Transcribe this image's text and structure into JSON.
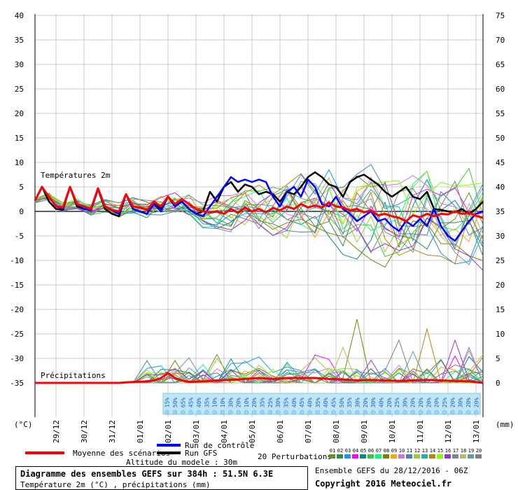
{
  "chart_data": {
    "type": "line",
    "temp_axis": {
      "label": "(°C)",
      "ticks": [
        40,
        35,
        30,
        25,
        20,
        15,
        10,
        5,
        0,
        -5,
        -10,
        -15,
        -20,
        -25,
        -30,
        -35
      ],
      "range": [
        -35,
        40
      ]
    },
    "precip_axis": {
      "label": "(mm)",
      "ticks": [
        75,
        70,
        65,
        60,
        55,
        50,
        45,
        40,
        35,
        30,
        25,
        20,
        15,
        10,
        5,
        0
      ],
      "range": [
        0,
        75
      ]
    },
    "x_dates": [
      "29/12",
      "30/12",
      "31/12",
      "01/01",
      "02/01",
      "03/01",
      "04/01",
      "05/01",
      "06/01",
      "07/01",
      "08/01",
      "09/01",
      "10/01",
      "11/01",
      "12/01",
      "13/01"
    ],
    "x_hours_range": [
      0,
      384
    ],
    "temp_section_label": "Températures 2m",
    "precip_section_label": "Précipitations",
    "series": [
      {
        "name": "Moyenne des scénarios",
        "color": "#ff0000"
      },
      {
        "name": "Run de contrôle",
        "color": "#0000ff"
      },
      {
        "name": "Run GFS",
        "color": "#000000"
      }
    ],
    "mean_temp": [
      [
        0,
        2.2
      ],
      [
        6,
        5
      ],
      [
        12,
        3
      ],
      [
        18,
        1
      ],
      [
        24,
        0.8
      ],
      [
        30,
        5
      ],
      [
        36,
        1.5
      ],
      [
        42,
        1
      ],
      [
        48,
        0.5
      ],
      [
        54,
        4.7
      ],
      [
        60,
        1
      ],
      [
        66,
        0.3
      ],
      [
        72,
        0
      ],
      [
        78,
        3.5
      ],
      [
        84,
        1
      ],
      [
        90,
        0.8
      ],
      [
        96,
        0.3
      ],
      [
        102,
        2
      ],
      [
        108,
        1
      ],
      [
        114,
        3
      ],
      [
        120,
        1.5
      ],
      [
        126,
        2.5
      ],
      [
        132,
        1.5
      ],
      [
        138,
        0.5
      ],
      [
        144,
        0
      ],
      [
        150,
        -0.2
      ],
      [
        156,
        0
      ],
      [
        162,
        -0.5
      ],
      [
        168,
        0.5
      ],
      [
        174,
        -0.3
      ],
      [
        180,
        0.8
      ],
      [
        186,
        0
      ],
      [
        192,
        0.5
      ],
      [
        198,
        -0.2
      ],
      [
        204,
        0.7
      ],
      [
        210,
        0.2
      ],
      [
        216,
        1
      ],
      [
        222,
        0.5
      ],
      [
        228,
        1.5
      ],
      [
        234,
        0.8
      ],
      [
        240,
        1.2
      ],
      [
        246,
        0.8
      ],
      [
        252,
        1.8
      ],
      [
        258,
        1
      ],
      [
        264,
        0.8
      ],
      [
        270,
        0.2
      ],
      [
        276,
        0.5
      ],
      [
        282,
        -0.2
      ],
      [
        288,
        0.2
      ],
      [
        294,
        -0.8
      ],
      [
        300,
        -0.5
      ],
      [
        306,
        -1
      ],
      [
        312,
        -1.3
      ],
      [
        318,
        -2
      ],
      [
        324,
        -0.8
      ],
      [
        330,
        -1.2
      ],
      [
        336,
        -0.5
      ],
      [
        342,
        -1
      ],
      [
        348,
        -0.5
      ],
      [
        354,
        -0.6
      ],
      [
        360,
        0
      ],
      [
        366,
        -0.5
      ],
      [
        372,
        -0.3
      ],
      [
        378,
        -0.9
      ],
      [
        384,
        -1.3
      ]
    ],
    "control_temp": [
      [
        0,
        2.2
      ],
      [
        6,
        5
      ],
      [
        12,
        3
      ],
      [
        18,
        1
      ],
      [
        24,
        0.5
      ],
      [
        30,
        5
      ],
      [
        36,
        1.5
      ],
      [
        42,
        0.5
      ],
      [
        48,
        0.2
      ],
      [
        54,
        4.5
      ],
      [
        60,
        1
      ],
      [
        66,
        0.2
      ],
      [
        72,
        -0.5
      ],
      [
        78,
        3.5
      ],
      [
        84,
        0.5
      ],
      [
        90,
        0
      ],
      [
        96,
        -0.5
      ],
      [
        102,
        1.5
      ],
      [
        108,
        0
      ],
      [
        114,
        3
      ],
      [
        120,
        1
      ],
      [
        126,
        2
      ],
      [
        132,
        0.5
      ],
      [
        138,
        -0.5
      ],
      [
        144,
        -1
      ],
      [
        150,
        1
      ],
      [
        156,
        3
      ],
      [
        162,
        5
      ],
      [
        168,
        7
      ],
      [
        174,
        6
      ],
      [
        180,
        6.5
      ],
      [
        186,
        6
      ],
      [
        192,
        6.5
      ],
      [
        198,
        6
      ],
      [
        204,
        3
      ],
      [
        210,
        1
      ],
      [
        216,
        4
      ],
      [
        222,
        5
      ],
      [
        228,
        3
      ],
      [
        234,
        6.5
      ],
      [
        240,
        5
      ],
      [
        246,
        1.5
      ],
      [
        252,
        1
      ],
      [
        258,
        3
      ],
      [
        264,
        0.5
      ],
      [
        270,
        -0.5
      ],
      [
        276,
        -2
      ],
      [
        282,
        -1
      ],
      [
        288,
        0
      ],
      [
        294,
        -2
      ],
      [
        300,
        -1.5
      ],
      [
        306,
        -3
      ],
      [
        312,
        -4
      ],
      [
        318,
        -2
      ],
      [
        324,
        -3
      ],
      [
        330,
        -1.5
      ],
      [
        336,
        -3
      ],
      [
        342,
        0.5
      ],
      [
        348,
        -3
      ],
      [
        354,
        -5
      ],
      [
        360,
        -6
      ],
      [
        366,
        -4
      ],
      [
        372,
        -2
      ],
      [
        378,
        -0.5
      ],
      [
        384,
        0
      ]
    ],
    "gfs_temp": [
      [
        0,
        2.2
      ],
      [
        6,
        5
      ],
      [
        12,
        2
      ],
      [
        18,
        0.5
      ],
      [
        24,
        0.3
      ],
      [
        30,
        5
      ],
      [
        36,
        1
      ],
      [
        42,
        0.5
      ],
      [
        48,
        0.3
      ],
      [
        54,
        4.5
      ],
      [
        60,
        0.5
      ],
      [
        66,
        -0.5
      ],
      [
        72,
        -1
      ],
      [
        78,
        3.5
      ],
      [
        84,
        0.5
      ],
      [
        90,
        0
      ],
      [
        96,
        -0.5
      ],
      [
        102,
        2
      ],
      [
        108,
        0.5
      ],
      [
        114,
        3
      ],
      [
        120,
        1.5
      ],
      [
        126,
        2
      ],
      [
        132,
        0.5
      ],
      [
        138,
        -0.5
      ],
      [
        144,
        0
      ],
      [
        150,
        4
      ],
      [
        156,
        2
      ],
      [
        162,
        5
      ],
      [
        168,
        6
      ],
      [
        174,
        4
      ],
      [
        180,
        5.5
      ],
      [
        186,
        5
      ],
      [
        192,
        3.5
      ],
      [
        198,
        4
      ],
      [
        204,
        3.5
      ],
      [
        210,
        2
      ],
      [
        216,
        4
      ],
      [
        222,
        3.5
      ],
      [
        228,
        5
      ],
      [
        234,
        7
      ],
      [
        240,
        8
      ],
      [
        246,
        7
      ],
      [
        252,
        5.5
      ],
      [
        258,
        5
      ],
      [
        264,
        3
      ],
      [
        270,
        6
      ],
      [
        276,
        7
      ],
      [
        282,
        7.5
      ],
      [
        288,
        6.5
      ],
      [
        294,
        5.5
      ],
      [
        300,
        4
      ],
      [
        306,
        3
      ],
      [
        312,
        4
      ],
      [
        318,
        5
      ],
      [
        324,
        3
      ],
      [
        330,
        2.5
      ],
      [
        336,
        4
      ],
      [
        342,
        0.5
      ],
      [
        348,
        0.3
      ],
      [
        354,
        0
      ],
      [
        360,
        -0.2
      ],
      [
        366,
        0.5
      ],
      [
        372,
        -0.5
      ],
      [
        378,
        0.5
      ],
      [
        384,
        2
      ]
    ],
    "mean_precip": [
      [
        0,
        0
      ],
      [
        72,
        0
      ],
      [
        84,
        0.2
      ],
      [
        96,
        0.3
      ],
      [
        102,
        0.5
      ],
      [
        108,
        1
      ],
      [
        114,
        2
      ],
      [
        120,
        1
      ],
      [
        126,
        0.5
      ],
      [
        132,
        0.2
      ],
      [
        144,
        0.3
      ],
      [
        156,
        0.5
      ],
      [
        168,
        0.6
      ],
      [
        180,
        0.8
      ],
      [
        192,
        1
      ],
      [
        204,
        0.8
      ],
      [
        216,
        1
      ],
      [
        228,
        1
      ],
      [
        240,
        1
      ],
      [
        252,
        0.8
      ],
      [
        264,
        0.7
      ],
      [
        276,
        0.5
      ],
      [
        288,
        0.6
      ],
      [
        300,
        0.5
      ],
      [
        312,
        0.4
      ],
      [
        324,
        0.5
      ],
      [
        336,
        0.6
      ],
      [
        348,
        0.5
      ],
      [
        360,
        0.4
      ],
      [
        372,
        0.3
      ],
      [
        384,
        0
      ]
    ],
    "precip_probabilities": [
      "15%",
      "50%",
      "65%",
      "45%",
      "40%",
      "35%",
      "10%",
      "10%",
      "30%",
      "20%",
      "10%",
      "20%",
      "35%",
      "25%",
      "30%",
      "35%",
      "40%",
      "45%",
      "40%",
      "35%",
      "40%",
      "45%",
      "50%",
      "35%",
      "30%",
      "20%",
      "30%",
      "40%",
      "20%",
      "25%",
      "30%",
      "20%",
      "20%",
      "20%",
      "20%",
      "25%",
      "20%",
      "30%",
      "20%",
      "20%"
    ],
    "ensemble_legend_title": "20 Perturbations",
    "ensemble_ids": [
      "01",
      "02",
      "03",
      "04",
      "05",
      "06",
      "07",
      "08",
      "09",
      "10",
      "11",
      "12",
      "13",
      "14",
      "15",
      "16",
      "17",
      "18",
      "19",
      "20"
    ],
    "ensemble_colors": [
      "#6b8e23",
      "#2e8b57",
      "#1e90ff",
      "#ff00ff",
      "#008b8b",
      "#32cd32",
      "#00ff7f",
      "#808000",
      "#ffa500",
      "#da70d6",
      "#4682b4",
      "#9acd32",
      "#20b2aa",
      "#b8860b",
      "#7fff00",
      "#9932cc",
      "#778899",
      "#bdb76b",
      "#5f9ea0",
      "#808080"
    ]
  },
  "texts": {
    "altitude": "Altitude du modele : 30m",
    "box_title": "Diagramme des ensembles GEFS sur 384h : 51.5N 6.3E",
    "box_subtitle": "Température 2m (°C) , précipitations (mm)",
    "run_info": "Ensemble GEFS du 28/12/2016 - 06Z",
    "copyright": "Copyright 2016 Meteociel.fr"
  }
}
